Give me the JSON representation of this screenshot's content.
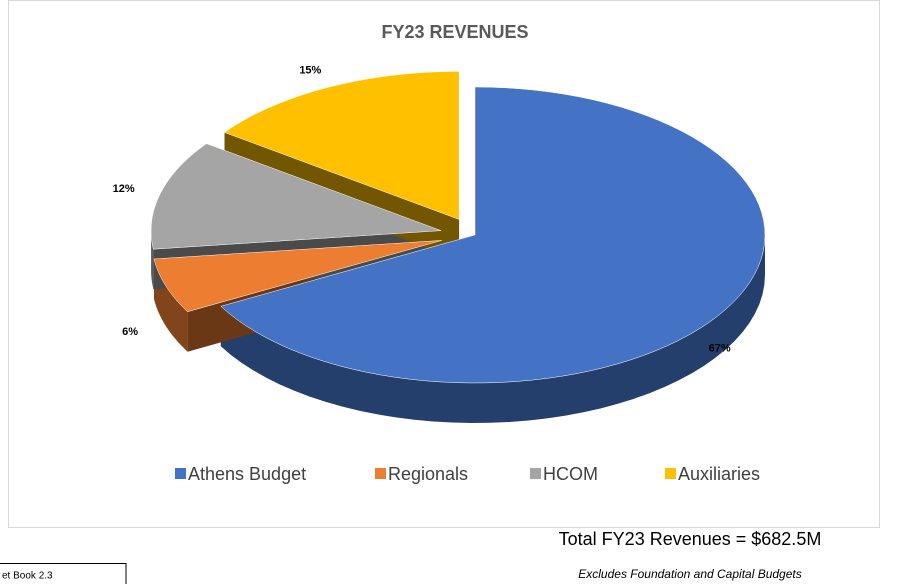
{
  "chart_data": {
    "type": "pie",
    "title": "FY23 REVENUES",
    "categories": [
      "Athens Budget",
      "Regionals",
      "HCOM",
      "Auxiliaries"
    ],
    "values": [
      67,
      6,
      12,
      15
    ],
    "value_labels": [
      "67%",
      "6%",
      "12%",
      "15%"
    ],
    "colors": [
      "#4472c4",
      "#ed7d31",
      "#a5a5a5",
      "#ffc000"
    ],
    "legend": "bottom",
    "notes": [
      "Total FY23 Revenues = $682.5M",
      "Excludes Foundation and Capital Budgets",
      "et Book 2.3"
    ]
  }
}
